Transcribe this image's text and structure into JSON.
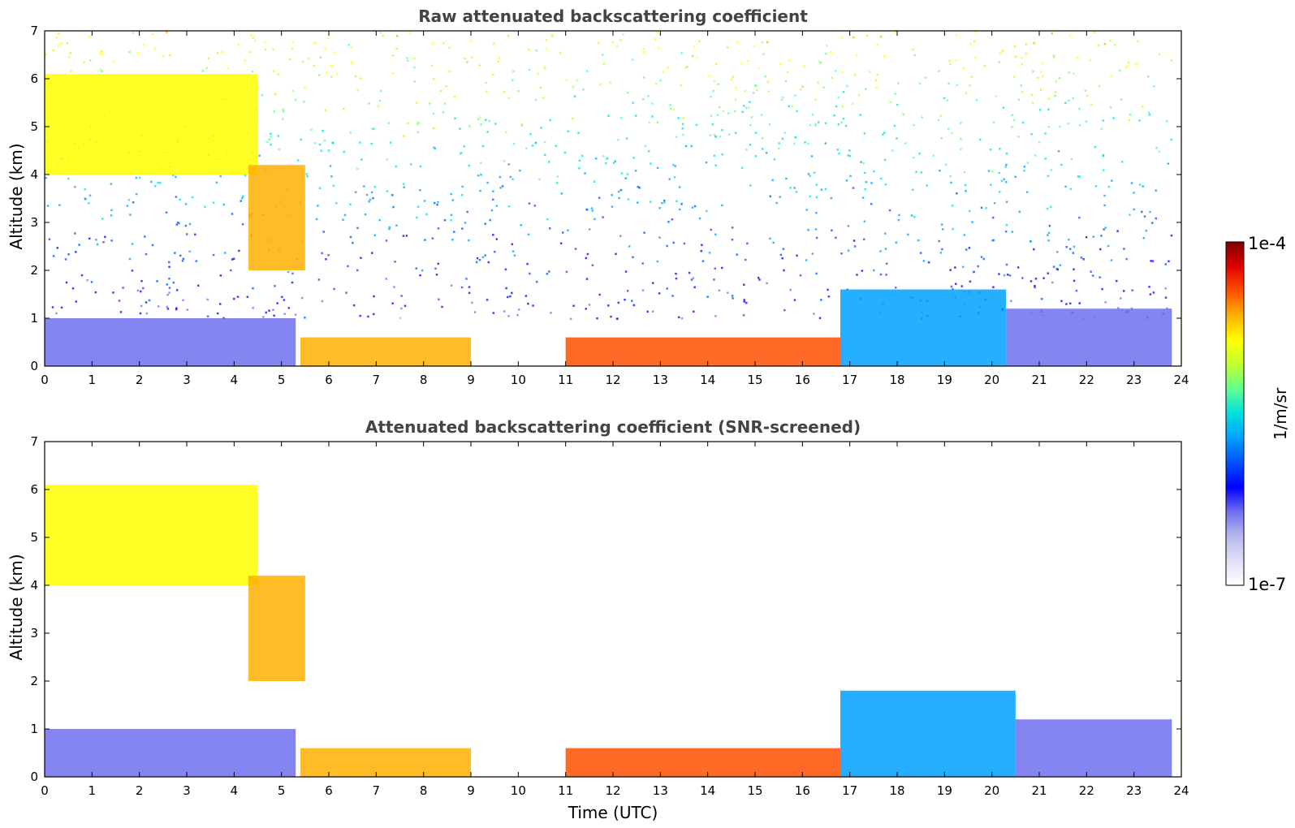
{
  "chart_data": [
    {
      "type": "heatmap",
      "title": "Raw attenuated backscattering coefficient",
      "xlabel": "",
      "ylabel": "Altitude (km)",
      "xlim": [
        0,
        24
      ],
      "ylim": [
        0,
        7
      ],
      "xticks": [
        "0",
        "1",
        "2",
        "3",
        "4",
        "5",
        "6",
        "7",
        "8",
        "9",
        "10",
        "11",
        "12",
        "13",
        "14",
        "15",
        "16",
        "17",
        "18",
        "19",
        "20",
        "21",
        "22",
        "23",
        "24"
      ],
      "yticks": [
        "0",
        "1",
        "2",
        "3",
        "4",
        "5",
        "6",
        "7"
      ],
      "screened": false,
      "features": [
        {
          "t0": 0,
          "t1": 5.3,
          "h0": 0,
          "h1": 1.0,
          "level": 0.2
        },
        {
          "t0": 5.4,
          "t1": 9.0,
          "h0": 0,
          "h1": 0.6,
          "level": 0.78
        },
        {
          "t0": 11.0,
          "t1": 16.8,
          "h0": 0,
          "h1": 0.6,
          "level": 0.85
        },
        {
          "t0": 16.8,
          "t1": 20.3,
          "h0": 0,
          "h1": 1.6,
          "level": 0.42
        },
        {
          "t0": 20.3,
          "t1": 23.8,
          "h0": 0,
          "h1": 1.2,
          "level": 0.18
        },
        {
          "t0": 0,
          "t1": 4.5,
          "h0": 4.0,
          "h1": 6.1,
          "level": 0.68
        },
        {
          "t0": 4.3,
          "t1": 5.5,
          "h0": 2.0,
          "h1": 4.2,
          "level": 0.78
        }
      ]
    },
    {
      "type": "heatmap",
      "title": "Attenuated backscattering coefficient (SNR-screened)",
      "xlabel": "Time (UTC)",
      "ylabel": "Altitude (km)",
      "xlim": [
        0,
        24
      ],
      "ylim": [
        0,
        7
      ],
      "xticks": [
        "0",
        "1",
        "2",
        "3",
        "4",
        "5",
        "6",
        "7",
        "8",
        "9",
        "10",
        "11",
        "12",
        "13",
        "14",
        "15",
        "16",
        "17",
        "18",
        "19",
        "20",
        "21",
        "22",
        "23",
        "24"
      ],
      "yticks": [
        "0",
        "1",
        "2",
        "3",
        "4",
        "5",
        "6",
        "7"
      ],
      "screened": true,
      "features": [
        {
          "t0": 0,
          "t1": 5.3,
          "h0": 0,
          "h1": 1.0,
          "level": 0.2
        },
        {
          "t0": 5.4,
          "t1": 9.0,
          "h0": 0,
          "h1": 0.6,
          "level": 0.78
        },
        {
          "t0": 11.0,
          "t1": 16.8,
          "h0": 0,
          "h1": 0.6,
          "level": 0.85
        },
        {
          "t0": 16.8,
          "t1": 20.5,
          "h0": 0,
          "h1": 1.8,
          "level": 0.42
        },
        {
          "t0": 20.5,
          "t1": 23.8,
          "h0": 0,
          "h1": 1.2,
          "level": 0.18
        },
        {
          "t0": 0,
          "t1": 4.5,
          "h0": 4.0,
          "h1": 6.1,
          "level": 0.68
        },
        {
          "t0": 4.3,
          "t1": 5.5,
          "h0": 2.0,
          "h1": 4.2,
          "level": 0.78
        }
      ]
    }
  ],
  "colorbar": {
    "label": "1/m/sr",
    "max_label": "1e-4",
    "min_label": "1e-7",
    "min_value": 1e-07,
    "max_value": 0.0001,
    "scale": "log",
    "colors": [
      "#ffffff",
      "#e0e0f8",
      "#b8b8ee",
      "#7070f0",
      "#0000ff",
      "#0050ff",
      "#00a0ff",
      "#00e0e0",
      "#60ff90",
      "#c0ff30",
      "#ffff00",
      "#ffb000",
      "#ff5000",
      "#e00000",
      "#800000"
    ]
  }
}
